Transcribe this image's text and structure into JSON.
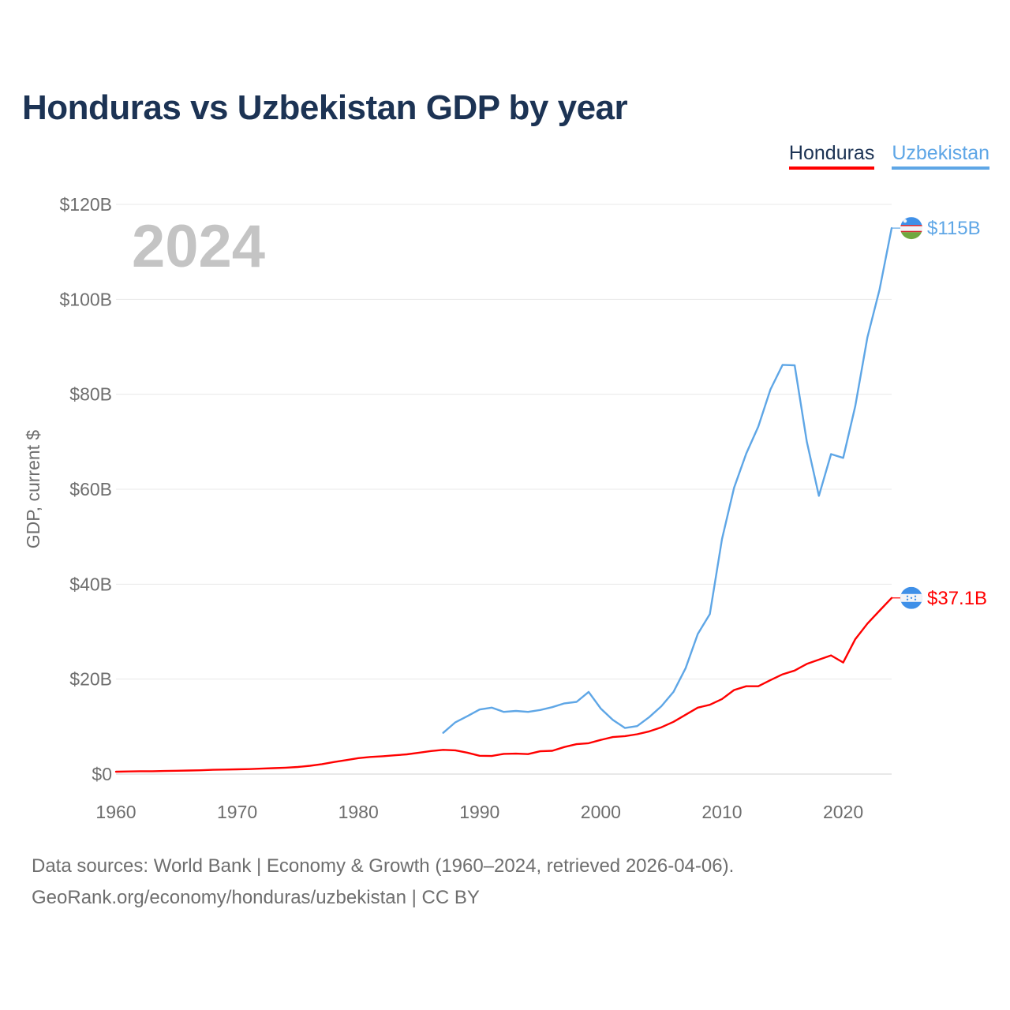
{
  "chart_data": {
    "type": "line",
    "title": "Honduras vs Uzbekistan GDP by year",
    "ylabel": "GDP, current $",
    "xlabel": "",
    "year_overlay": "2024",
    "xlim": [
      1960,
      2024
    ],
    "ylim": [
      0,
      120
    ],
    "x_ticks": [
      1960,
      1970,
      1980,
      1990,
      2000,
      2010,
      2020
    ],
    "y_ticks": [
      {
        "value": 0,
        "label": "$0"
      },
      {
        "value": 20,
        "label": "$20B"
      },
      {
        "value": 40,
        "label": "$40B"
      },
      {
        "value": 60,
        "label": "$60B"
      },
      {
        "value": 80,
        "label": "$80B"
      },
      {
        "value": 100,
        "label": "$100B"
      },
      {
        "value": 120,
        "label": "$120B"
      }
    ],
    "grid": true,
    "legend_position": "top-right",
    "series": [
      {
        "name": "Honduras",
        "color": "#ff0000",
        "flag_icon": "honduras-flag-icon",
        "end_label": "$37.1B",
        "x": [
          1960,
          1961,
          1962,
          1963,
          1964,
          1965,
          1966,
          1967,
          1968,
          1969,
          1970,
          1971,
          1972,
          1973,
          1974,
          1975,
          1976,
          1977,
          1978,
          1979,
          1980,
          1981,
          1982,
          1983,
          1984,
          1985,
          1986,
          1987,
          1988,
          1989,
          1990,
          1991,
          1992,
          1993,
          1994,
          1995,
          1996,
          1997,
          1998,
          1999,
          2000,
          2001,
          2002,
          2003,
          2004,
          2005,
          2006,
          2007,
          2008,
          2009,
          2010,
          2011,
          2012,
          2013,
          2014,
          2015,
          2016,
          2017,
          2018,
          2019,
          2020,
          2021,
          2022,
          2023,
          2024
        ],
        "values": [
          0.5,
          0.55,
          0.6,
          0.6,
          0.65,
          0.7,
          0.75,
          0.8,
          0.9,
          0.95,
          1.0,
          1.05,
          1.15,
          1.25,
          1.35,
          1.5,
          1.75,
          2.1,
          2.55,
          2.95,
          3.35,
          3.6,
          3.75,
          3.95,
          4.15,
          4.5,
          4.85,
          5.1,
          5.0,
          4.5,
          3.85,
          3.8,
          4.25,
          4.3,
          4.2,
          4.8,
          4.9,
          5.7,
          6.3,
          6.5,
          7.2,
          7.8,
          8.0,
          8.4,
          9.0,
          9.85,
          11.0,
          12.5,
          14.0,
          14.6,
          15.8,
          17.7,
          18.5,
          18.5,
          19.8,
          21.0,
          21.8,
          23.2,
          24.1,
          25.0,
          23.5,
          28.4,
          31.7,
          34.4,
          37.1
        ]
      },
      {
        "name": "Uzbekistan",
        "color": "#5ea6e6",
        "flag_icon": "uzbekistan-flag-icon",
        "end_label": "$115B",
        "x": [
          1987,
          1988,
          1989,
          1990,
          1991,
          1992,
          1993,
          1994,
          1995,
          1996,
          1997,
          1998,
          1999,
          2000,
          2001,
          2002,
          2003,
          2004,
          2005,
          2006,
          2007,
          2008,
          2009,
          2010,
          2011,
          2012,
          2013,
          2014,
          2015,
          2016,
          2017,
          2018,
          2019,
          2020,
          2021,
          2022,
          2023,
          2024
        ],
        "values": [
          8.7,
          10.9,
          12.2,
          13.6,
          14.0,
          13.1,
          13.3,
          13.1,
          13.5,
          14.1,
          14.9,
          15.2,
          17.3,
          13.8,
          11.4,
          9.7,
          10.1,
          12.0,
          14.3,
          17.3,
          22.3,
          29.5,
          33.7,
          49.5,
          60.3,
          67.5,
          73.2,
          81.0,
          86.2,
          86.1,
          70.0,
          58.6,
          67.4,
          66.6,
          77.5,
          92.0,
          102.0,
          115.0
        ]
      }
    ]
  },
  "footer": {
    "source": "Data sources: World Bank | Economy & Growth (1960–2024, retrieved 2026-04-06).",
    "credit": "GeoRank.org/economy/honduras/uzbekistan | CC BY"
  }
}
